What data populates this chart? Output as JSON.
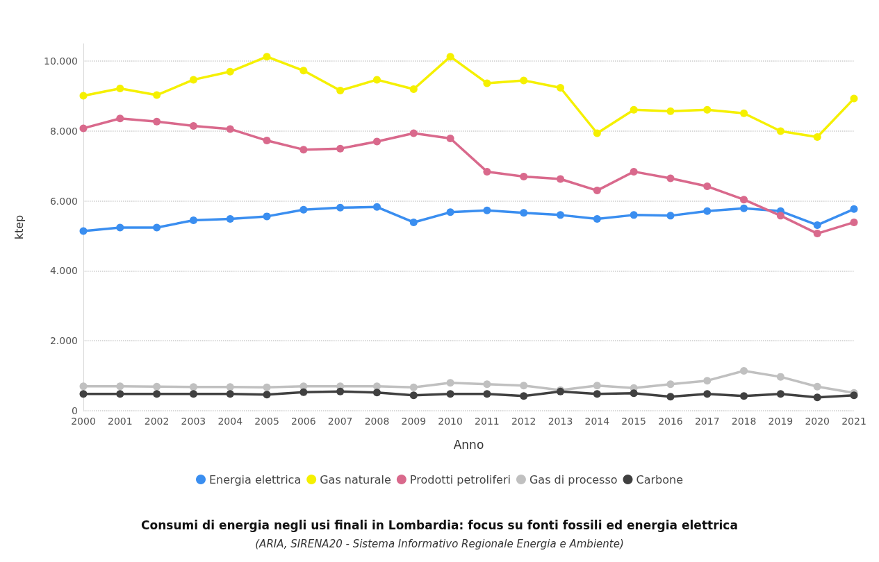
{
  "chart_data": {
    "type": "line",
    "title": "Consumi di energia negli usi finali in Lombardia: focus su fonti fossili ed energia elettrica",
    "subtitle": "(ARIA, SIRENA20 - Sistema Informativo Regionale Energia e Ambiente)",
    "xlabel": "Anno",
    "ylabel": "ktep",
    "categories": [
      "2000",
      "2001",
      "2002",
      "2003",
      "2004",
      "2005",
      "2006",
      "2007",
      "2008",
      "2009",
      "2010",
      "2011",
      "2012",
      "2013",
      "2014",
      "2015",
      "2016",
      "2017",
      "2018",
      "2019",
      "2020",
      "2021"
    ],
    "series": [
      {
        "name": "Energia elettrica",
        "color": "#3a8ef0",
        "values": [
          5140,
          5240,
          5240,
          5450,
          5490,
          5560,
          5750,
          5810,
          5830,
          5390,
          5680,
          5730,
          5660,
          5600,
          5490,
          5600,
          5580,
          5710,
          5790,
          5710,
          5310,
          5770
        ]
      },
      {
        "name": "Gas naturale",
        "color": "#f5f000",
        "values": [
          9010,
          9220,
          9030,
          9470,
          9700,
          10130,
          9730,
          9160,
          9470,
          9200,
          10130,
          9370,
          9450,
          9240,
          7940,
          8610,
          8570,
          8610,
          8510,
          8000,
          7830,
          8930
        ]
      },
      {
        "name": "Prodotti petroliferi",
        "color": "#d9698c",
        "values": [
          8080,
          8360,
          8270,
          8150,
          8060,
          7730,
          7470,
          7500,
          7700,
          7940,
          7790,
          6840,
          6700,
          6630,
          6300,
          6840,
          6650,
          6420,
          6040,
          5580,
          5070,
          5390
        ]
      },
      {
        "name": "Gas di processo",
        "color": "#c0c0c0",
        "values": [
          700,
          700,
          690,
          680,
          680,
          670,
          700,
          700,
          700,
          670,
          800,
          760,
          720,
          590,
          720,
          650,
          760,
          860,
          1140,
          970,
          690,
          510
        ]
      },
      {
        "name": "Carbone",
        "color": "#404040",
        "values": [
          480,
          480,
          480,
          480,
          480,
          460,
          530,
          550,
          520,
          440,
          480,
          480,
          420,
          550,
          480,
          500,
          400,
          480,
          420,
          480,
          380,
          440
        ]
      }
    ],
    "ylim": [
      0,
      10500
    ],
    "yticks": [
      {
        "value": 0,
        "label": "0"
      },
      {
        "value": 2000,
        "label": "2.000"
      },
      {
        "value": 4000,
        "label": "4.000"
      },
      {
        "value": 6000,
        "label": "6.000"
      },
      {
        "value": 8000,
        "label": "8.000"
      },
      {
        "value": 10000,
        "label": "10.000"
      }
    ],
    "grid": "y",
    "legend": "bottom",
    "marker": "circle",
    "line_style": "solid"
  }
}
